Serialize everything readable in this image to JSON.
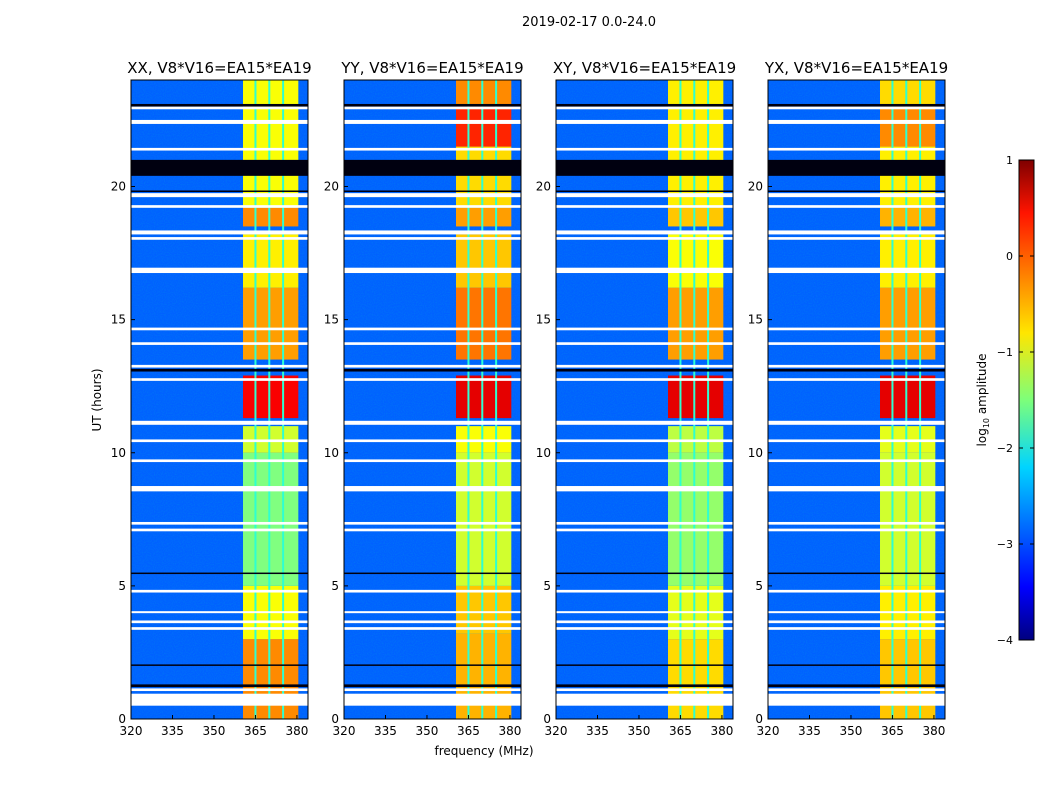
{
  "chart_data": {
    "type": "heatmap",
    "suptitle": "2019-02-17 0.0-24.0",
    "xlabel": "frequency (MHz)",
    "ylabel": "UT (hours)",
    "xlim": [
      320,
      384
    ],
    "ylim": [
      0,
      24
    ],
    "xticks": [
      "320",
      "335",
      "350",
      "365",
      "380"
    ],
    "yticks": [
      "0",
      "5",
      "10",
      "15",
      "20"
    ],
    "colorbar": {
      "label": "log10 amplitude",
      "label_main": "log",
      "label_sub": "10",
      "label_rest": " amplitude",
      "range": [
        -4,
        1
      ],
      "ticks": [
        "1",
        "0",
        "−1",
        "−2",
        "−3",
        "−4"
      ],
      "colormap": "jet"
    },
    "background_level": -2.9,
    "band": {
      "start_mhz": 360.5,
      "end_mhz": 380.5,
      "gaps_mhz": [
        365,
        370,
        375
      ]
    },
    "flagged_rows_hours": [
      [
        22.9,
        23.0
      ],
      [
        22.35,
        22.5
      ],
      [
        21.35,
        21.45
      ],
      [
        19.6,
        19.75
      ],
      [
        19.2,
        19.3
      ],
      [
        18.2,
        18.35
      ],
      [
        18.0,
        18.1
      ],
      [
        16.75,
        16.95
      ],
      [
        14.6,
        14.7
      ],
      [
        14.05,
        14.15
      ],
      [
        13.2,
        13.3
      ],
      [
        12.7,
        12.8
      ],
      [
        11.05,
        11.2
      ],
      [
        10.4,
        10.5
      ],
      [
        9.65,
        9.75
      ],
      [
        8.55,
        8.75
      ],
      [
        7.3,
        7.4
      ],
      [
        7.05,
        7.15
      ],
      [
        4.75,
        4.85
      ],
      [
        4.0,
        4.05
      ],
      [
        3.6,
        3.7
      ],
      [
        3.35,
        3.45
      ],
      [
        1.05,
        1.15
      ],
      [
        0.5,
        0.95
      ]
    ],
    "dark_rows_hours": [
      [
        20.4,
        21.0
      ],
      [
        23.0,
        23.1
      ],
      [
        19.8,
        19.85
      ],
      [
        13.05,
        13.15
      ],
      [
        5.45,
        5.5
      ],
      [
        2.0,
        2.05
      ],
      [
        1.2,
        1.3
      ]
    ],
    "panels": [
      {
        "title": "XX, V8*V16=EA15*EA19",
        "segments": [
          [
            0,
            3,
            -0.3
          ],
          [
            3,
            5,
            -0.9
          ],
          [
            5,
            10,
            -1.5
          ],
          [
            10,
            11,
            -1.1
          ],
          [
            11.3,
            12.9,
            0.4
          ],
          [
            13.5,
            16.2,
            -0.4
          ],
          [
            16.2,
            18.2,
            -0.8
          ],
          [
            18.5,
            19.2,
            -0.3
          ],
          [
            19.2,
            24,
            -0.9
          ]
        ]
      },
      {
        "title": "YY, V8*V16=EA15*EA19",
        "segments": [
          [
            0,
            3.2,
            -0.5
          ],
          [
            3.2,
            5,
            -0.6
          ],
          [
            5,
            10,
            -1.1
          ],
          [
            10,
            11,
            -0.9
          ],
          [
            11.3,
            12.9,
            0.5
          ],
          [
            13.5,
            16.2,
            -0.2
          ],
          [
            16.2,
            18.2,
            -0.6
          ],
          [
            18.5,
            19.2,
            -0.4
          ],
          [
            19.2,
            21.5,
            -0.7
          ],
          [
            21.5,
            23,
            0.2
          ],
          [
            23,
            24,
            -0.3
          ]
        ]
      },
      {
        "title": "XY, V8*V16=EA15*EA19",
        "segments": [
          [
            0,
            3,
            -0.7
          ],
          [
            3,
            5,
            -1.0
          ],
          [
            5,
            10,
            -1.4
          ],
          [
            10,
            11,
            -1.2
          ],
          [
            11.3,
            12.9,
            0.5
          ],
          [
            13.5,
            16.2,
            -0.4
          ],
          [
            16.2,
            18.2,
            -0.9
          ],
          [
            18.5,
            19.2,
            -0.6
          ],
          [
            19.2,
            24,
            -0.8
          ]
        ]
      },
      {
        "title": "YX, V8*V16=EA15*EA19",
        "segments": [
          [
            0,
            3,
            -0.6
          ],
          [
            3,
            5,
            -0.8
          ],
          [
            5,
            10,
            -1.1
          ],
          [
            10,
            11,
            -1.0
          ],
          [
            11.3,
            12.9,
            0.5
          ],
          [
            13.5,
            16.2,
            -0.4
          ],
          [
            16.2,
            18.2,
            -0.8
          ],
          [
            18.5,
            19.2,
            -0.5
          ],
          [
            19.2,
            21.5,
            -0.8
          ],
          [
            21.5,
            23,
            -0.3
          ],
          [
            23,
            24,
            -0.7
          ]
        ]
      }
    ]
  }
}
